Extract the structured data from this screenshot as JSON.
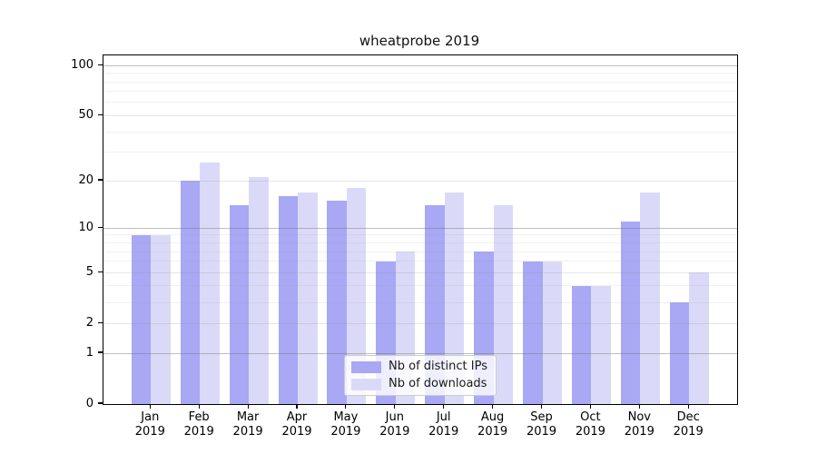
{
  "title": "wheatprobe 2019",
  "chart_data": {
    "type": "bar",
    "title": "wheatprobe 2019",
    "categories": [
      "Jan 2019",
      "Feb 2019",
      "Mar 2019",
      "Apr 2019",
      "May 2019",
      "Jun 2019",
      "Jul 2019",
      "Aug 2019",
      "Sep 2019",
      "Oct 2019",
      "Nov 2019",
      "Dec 2019"
    ],
    "series": [
      {
        "name": "Nb of distinct IPs",
        "color": "#a8a8f5",
        "values": [
          9,
          20,
          14,
          16,
          15,
          6,
          14,
          7,
          6,
          4,
          11,
          3
        ]
      },
      {
        "name": "Nb of downloads",
        "color": "#dadaf8",
        "values": [
          9,
          26,
          21,
          17,
          18,
          7,
          17,
          14,
          6,
          4,
          17,
          5
        ]
      }
    ],
    "xlabel": "",
    "ylabel": "",
    "yscale": "log1p",
    "ylim": [
      0,
      115
    ],
    "yticks": [
      0,
      1,
      2,
      5,
      10,
      20,
      50,
      100
    ],
    "major_gridlines": [
      1,
      10,
      100
    ],
    "mid_gridlines": [
      2,
      5,
      20,
      50
    ],
    "minor_gridlines": [
      3,
      4,
      6,
      7,
      8,
      9,
      30,
      40,
      60,
      70,
      80,
      90
    ],
    "grid": "on",
    "legend_position": "lower center"
  }
}
